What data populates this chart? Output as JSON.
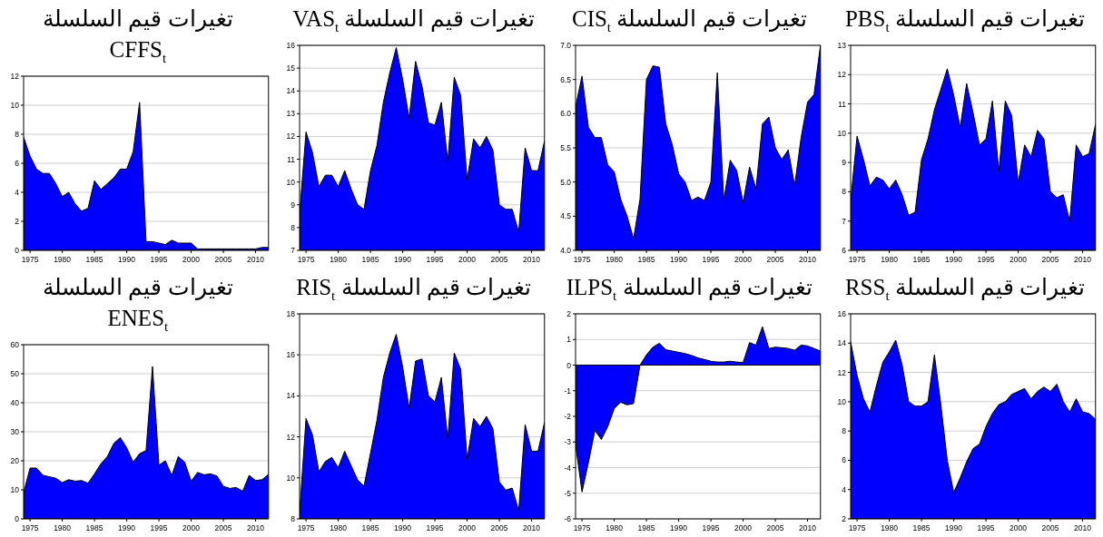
{
  "chart_data": [
    {
      "type": "area",
      "title": "تغيرات قيم السلسلة\nCFFS$_{t}$",
      "color": "#0000ff",
      "grid": "y",
      "xlim": [
        1974,
        2012
      ],
      "xticks": [
        1975,
        1980,
        1985,
        1990,
        1995,
        2000,
        2005,
        2010
      ],
      "ylim": [
        0,
        12
      ],
      "yticks": [
        0,
        2,
        4,
        6,
        8,
        10,
        12
      ],
      "x": [
        1974,
        1975,
        1976,
        1977,
        1978,
        1979,
        1980,
        1981,
        1982,
        1983,
        1984,
        1985,
        1986,
        1987,
        1988,
        1989,
        1990,
        1991,
        1992,
        1993,
        1994,
        1995,
        1996,
        1997,
        1998,
        1999,
        2000,
        2001,
        2002,
        2003,
        2004,
        2005,
        2006,
        2007,
        2008,
        2009,
        2010,
        2011,
        2012
      ],
      "values": [
        7.8,
        6.5,
        5.6,
        5.3,
        5.3,
        4.6,
        3.7,
        4.0,
        3.2,
        2.7,
        2.9,
        4.8,
        4.2,
        4.6,
        5.0,
        5.6,
        5.6,
        6.8,
        10.2,
        0.6,
        0.6,
        0.5,
        0.4,
        0.7,
        0.5,
        0.5,
        0.5,
        0.1,
        0.1,
        0.1,
        0.1,
        0.1,
        0.1,
        0.1,
        0.1,
        0.1,
        0.1,
        0.2,
        0.2
      ]
    },
    {
      "type": "area",
      "title": "تغيرات قيم السلسلة VAS$_{t}$",
      "color": "#0000ff",
      "grid": "y",
      "xlim": [
        1974,
        2012
      ],
      "xticks": [
        1975,
        1980,
        1985,
        1990,
        1995,
        2000,
        2005,
        2010
      ],
      "ylim": [
        7,
        16
      ],
      "yticks": [
        7,
        8,
        9,
        10,
        11,
        12,
        13,
        14,
        15,
        16
      ],
      "x": [
        1974,
        1975,
        1976,
        1977,
        1978,
        1979,
        1980,
        1981,
        1982,
        1983,
        1984,
        1985,
        1986,
        1987,
        1988,
        1989,
        1990,
        1991,
        1992,
        1993,
        1994,
        1995,
        1996,
        1997,
        1998,
        1999,
        2000,
        2001,
        2002,
        2003,
        2004,
        2005,
        2006,
        2007,
        2008,
        2009,
        2010,
        2011,
        2012
      ],
      "values": [
        8.6,
        12.2,
        11.3,
        9.8,
        10.3,
        10.3,
        9.8,
        10.5,
        9.7,
        9.0,
        8.8,
        10.5,
        11.6,
        13.5,
        14.8,
        15.9,
        14.5,
        12.8,
        15.3,
        14.2,
        12.6,
        12.5,
        13.5,
        10.9,
        14.6,
        13.8,
        10.1,
        11.9,
        11.5,
        12.0,
        11.4,
        9.0,
        8.8,
        8.8,
        7.8,
        11.5,
        10.5,
        10.5,
        11.8
      ]
    },
    {
      "type": "area",
      "title": "تغيرات قيم السلسلة CIS$_{t}$",
      "color": "#0000ff",
      "grid": "y",
      "xlim": [
        1974,
        2012
      ],
      "xticks": [
        1975,
        1980,
        1985,
        1990,
        1995,
        2000,
        2005,
        2010
      ],
      "ylim": [
        4,
        7
      ],
      "yticks": [
        {
          "value": 4,
          "label": "4.0"
        },
        4.5,
        {
          "value": 5,
          "label": "5.0"
        },
        5.5,
        {
          "value": 6,
          "label": "6.0"
        },
        6.5,
        {
          "value": 7,
          "label": "7.0"
        }
      ],
      "x": [
        1974,
        1975,
        1976,
        1977,
        1978,
        1979,
        1980,
        1981,
        1982,
        1983,
        1984,
        1985,
        1986,
        1987,
        1988,
        1989,
        1990,
        1991,
        1992,
        1993,
        1994,
        1995,
        1996,
        1997,
        1998,
        1999,
        2000,
        2001,
        2002,
        2003,
        2004,
        2005,
        2006,
        2007,
        2008,
        2009,
        2010,
        2011,
        2012
      ],
      "values": [
        6.1,
        6.55,
        5.8,
        5.65,
        5.65,
        5.25,
        5.15,
        4.75,
        4.5,
        4.17,
        4.75,
        6.5,
        6.7,
        6.68,
        5.85,
        5.55,
        5.12,
        5.0,
        4.73,
        4.78,
        4.73,
        5.0,
        6.6,
        4.73,
        5.32,
        5.17,
        4.7,
        5.22,
        4.9,
        5.85,
        5.95,
        5.5,
        5.33,
        5.47,
        4.95,
        5.65,
        6.17,
        6.28,
        7.0
      ]
    },
    {
      "type": "area",
      "title": "تغيرات قيم السلسلة PBS$_{t}$",
      "color": "#0000ff",
      "grid": "y",
      "xlim": [
        1974,
        2012
      ],
      "xticks": [
        1975,
        1980,
        1985,
        1990,
        1995,
        2000,
        2005,
        2010
      ],
      "ylim": [
        6,
        13
      ],
      "yticks": [
        6,
        7,
        8,
        9,
        10,
        11,
        12,
        13
      ],
      "x": [
        1974,
        1975,
        1976,
        1977,
        1978,
        1979,
        1980,
        1981,
        1982,
        1983,
        1984,
        1985,
        1986,
        1987,
        1988,
        1989,
        1990,
        1991,
        1992,
        1993,
        1994,
        1995,
        1996,
        1997,
        1998,
        1999,
        2000,
        2001,
        2002,
        2003,
        2004,
        2005,
        2006,
        2007,
        2008,
        2009,
        2010,
        2011,
        2012
      ],
      "values": [
        7.7,
        9.9,
        9.1,
        8.2,
        8.5,
        8.4,
        8.1,
        8.4,
        7.9,
        7.2,
        7.3,
        9.1,
        9.8,
        10.8,
        11.5,
        12.2,
        11.3,
        10.2,
        11.7,
        10.7,
        9.6,
        9.8,
        11.1,
        8.7,
        11.1,
        10.6,
        8.3,
        9.6,
        9.2,
        10.1,
        9.8,
        8.0,
        7.8,
        7.9,
        7.0,
        9.6,
        9.2,
        9.3,
        10.3
      ]
    },
    {
      "type": "area",
      "title": "تغيرات قيم السلسلة\nENES$_{t}$",
      "color": "#0000ff",
      "grid": "y",
      "xlim": [
        1974,
        2012
      ],
      "xticks": [
        1975,
        1980,
        1985,
        1990,
        1995,
        2000,
        2005,
        2010
      ],
      "ylim": [
        0,
        60
      ],
      "yticks": [
        0,
        10,
        20,
        30,
        40,
        50,
        60
      ],
      "x": [
        1974,
        1975,
        1976,
        1977,
        1978,
        1979,
        1980,
        1981,
        1982,
        1983,
        1984,
        1985,
        1986,
        1987,
        1988,
        1989,
        1990,
        1991,
        1992,
        1993,
        1994,
        1995,
        1996,
        1997,
        1998,
        1999,
        2000,
        2001,
        2002,
        2003,
        2004,
        2005,
        2006,
        2007,
        2008,
        2009,
        2010,
        2011,
        2012
      ],
      "values": [
        9,
        17.5,
        17.5,
        15,
        14.5,
        14,
        12.5,
        13.5,
        13,
        13.2,
        12.3,
        15.5,
        19,
        21.5,
        26,
        28,
        24.5,
        19.5,
        22.5,
        23.5,
        52.5,
        18.5,
        20,
        15,
        21.5,
        19.5,
        13,
        16,
        15.2,
        15.5,
        14.8,
        11.2,
        10.5,
        10.8,
        9.5,
        15,
        13.2,
        13.5,
        15.3
      ]
    },
    {
      "type": "area",
      "title": "تغيرات قيم السلسلة RIS$_{t}$",
      "color": "#0000ff",
      "grid": "y",
      "xlim": [
        1974,
        2012
      ],
      "xticks": [
        1975,
        1980,
        1985,
        1990,
        1995,
        2000,
        2005,
        2010
      ],
      "ylim": [
        8,
        18
      ],
      "yticks": [
        8,
        10,
        12,
        14,
        16,
        18
      ],
      "x": [
        1974,
        1975,
        1976,
        1977,
        1978,
        1979,
        1980,
        1981,
        1982,
        1983,
        1984,
        1985,
        1986,
        1987,
        1988,
        1989,
        1990,
        1991,
        1992,
        1993,
        1994,
        1995,
        1996,
        1997,
        1998,
        1999,
        2000,
        2001,
        2002,
        2003,
        2004,
        2005,
        2006,
        2007,
        2008,
        2009,
        2010,
        2011,
        2012
      ],
      "values": [
        8.3,
        12.9,
        12.1,
        10.3,
        10.8,
        11.0,
        10.5,
        11.3,
        10.6,
        9.9,
        9.6,
        11.2,
        12.8,
        14.9,
        16.1,
        17.0,
        15.4,
        13.4,
        15.7,
        15.8,
        14.0,
        13.7,
        14.9,
        11.9,
        16.1,
        15.3,
        10.9,
        12.9,
        12.5,
        13.0,
        12.4,
        9.8,
        9.4,
        9.5,
        8.4,
        12.6,
        11.3,
        11.3,
        12.7
      ]
    },
    {
      "type": "area",
      "title": "تغيرات قيم السلسلة ILPS$_{t}$",
      "color": "#0000ff",
      "grid": "y",
      "xlim": [
        1974,
        2012
      ],
      "xticks": [
        1975,
        1980,
        1985,
        1990,
        1995,
        2000,
        2005,
        2010
      ],
      "ylim": [
        -6,
        2
      ],
      "yticks": [
        -6,
        -5,
        -4,
        -3,
        -2,
        -1,
        0,
        1,
        2
      ],
      "x": [
        1974,
        1975,
        1976,
        1977,
        1978,
        1979,
        1980,
        1981,
        1982,
        1983,
        1984,
        1985,
        1986,
        1987,
        1988,
        1989,
        1990,
        1991,
        1992,
        1993,
        1994,
        1995,
        1996,
        1997,
        1998,
        1999,
        2000,
        2001,
        2002,
        2003,
        2004,
        2005,
        2006,
        2007,
        2008,
        2009,
        2010,
        2011,
        2012
      ],
      "values": [
        -3.1,
        -4.95,
        -3.8,
        -2.55,
        -2.9,
        -2.4,
        -1.7,
        -1.45,
        -1.55,
        -1.5,
        0.0,
        0.4,
        0.7,
        0.85,
        0.6,
        0.55,
        0.5,
        0.45,
        0.38,
        0.28,
        0.22,
        0.15,
        0.12,
        0.12,
        0.15,
        0.12,
        0.1,
        0.88,
        0.78,
        1.5,
        0.65,
        0.7,
        0.68,
        0.65,
        0.58,
        0.78,
        0.75,
        0.65,
        0.55
      ]
    },
    {
      "type": "area",
      "title": "تغيرات قيم السلسلة RSS$_{t}$",
      "color": "#0000ff",
      "grid": "y",
      "xlim": [
        1974,
        2012
      ],
      "xticks": [
        1975,
        1980,
        1985,
        1990,
        1995,
        2000,
        2005,
        2010
      ],
      "ylim": [
        2,
        16
      ],
      "yticks": [
        2,
        4,
        6,
        8,
        10,
        12,
        14,
        16
      ],
      "x": [
        1974,
        1975,
        1976,
        1977,
        1978,
        1979,
        1980,
        1981,
        1982,
        1983,
        1984,
        1985,
        1986,
        1987,
        1988,
        1989,
        1990,
        1991,
        1992,
        1993,
        1994,
        1995,
        1996,
        1997,
        1998,
        1999,
        2000,
        2001,
        2002,
        2003,
        2004,
        2005,
        2006,
        2007,
        2008,
        2009,
        2010,
        2011,
        2012
      ],
      "values": [
        14.1,
        11.8,
        10.2,
        9.3,
        11.1,
        12.7,
        13.4,
        14.2,
        12.5,
        10.0,
        9.7,
        9.7,
        10.0,
        13.2,
        9.8,
        6.0,
        3.8,
        4.8,
        5.9,
        6.8,
        7.1,
        8.3,
        9.2,
        9.8,
        10.0,
        10.5,
        10.7,
        10.9,
        10.2,
        10.7,
        11.0,
        10.7,
        11.2,
        10.0,
        9.3,
        10.2,
        9.3,
        9.2,
        8.8
      ]
    }
  ]
}
